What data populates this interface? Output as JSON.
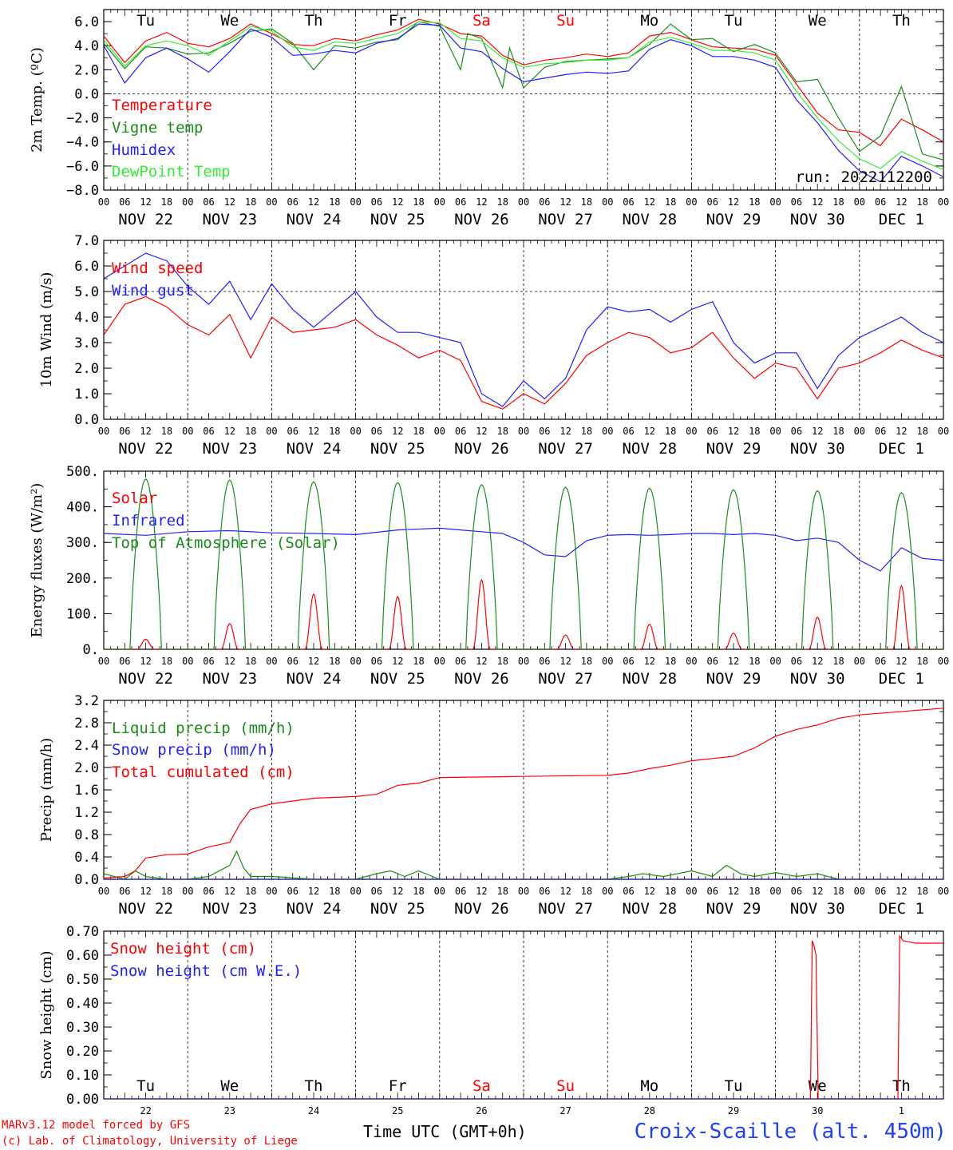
{
  "run_label": "run: 2022112200",
  "footer": {
    "model": "MARv3.12 model forced by GFS",
    "lab": "(c) Lab. of Climatology, University of Liege",
    "xlabel": "Time UTC (GMT+0h)",
    "station": "Croix-Scaille (alt. 450m)"
  },
  "colors": {
    "red": "#ff0000",
    "green": "#1a8c1a",
    "blue": "#1f1fff",
    "lightgreen": "#33ee33"
  },
  "hour_labels": [
    "00",
    "06",
    "12",
    "18"
  ],
  "date_labels": [
    "NOV 22",
    "NOV 23",
    "NOV 24",
    "NOV 25",
    "NOV 26",
    "NOV 27",
    "NOV 28",
    "NOV 29",
    "NOV 30",
    "DEC  1"
  ],
  "days": [
    {
      "name": "Tu",
      "weekend": false
    },
    {
      "name": "We",
      "weekend": false
    },
    {
      "name": "Th",
      "weekend": false
    },
    {
      "name": "Fr",
      "weekend": false
    },
    {
      "name": "Sa",
      "weekend": true
    },
    {
      "name": "Su",
      "weekend": true
    },
    {
      "name": "Mo",
      "weekend": false
    },
    {
      "name": "Tu",
      "weekend": false
    },
    {
      "name": "We",
      "weekend": false
    },
    {
      "name": "Th",
      "weekend": false
    }
  ],
  "day_numbers": [
    "22",
    "23",
    "24",
    "25",
    "26",
    "27",
    "28",
    "29",
    "30",
    "1"
  ],
  "chart_data": [
    {
      "type": "line",
      "ylabel": "2m Temp. (ºC)",
      "ylim": [
        -8,
        7
      ],
      "yticks": [
        "6.0",
        "4.0",
        "2.0",
        "0.0",
        "−2.0",
        "−4.0",
        "−6.0",
        "−8.0"
      ],
      "ytick_values": [
        6,
        4,
        2,
        0,
        -2,
        -4,
        -6,
        -8
      ],
      "zero_line": 0,
      "x_unit": "hours since NOV 22 00 UTC",
      "series": [
        {
          "name": "Temperature",
          "color": "#ff0000",
          "x": [
            0,
            6,
            12,
            18,
            24,
            30,
            36,
            42,
            48,
            54,
            60,
            66,
            72,
            78,
            84,
            90,
            96,
            102,
            108,
            114,
            120,
            126,
            132,
            138,
            144,
            150,
            156,
            162,
            168,
            174,
            180,
            186,
            192,
            198,
            204,
            210,
            216,
            222,
            228,
            234,
            240
          ],
          "values": [
            4.8,
            2.6,
            4.4,
            5.1,
            4.2,
            3.9,
            4.6,
            5.8,
            5.0,
            4.1,
            4.0,
            4.6,
            4.4,
            4.9,
            5.3,
            6.2,
            5.8,
            5.0,
            4.8,
            3.2,
            2.4,
            2.8,
            3.0,
            3.3,
            3.1,
            3.4,
            4.8,
            5.1,
            4.5,
            3.9,
            3.8,
            3.7,
            3.2,
            0.8,
            -1.6,
            -3.0,
            -3.2,
            -4.3,
            -2.1,
            -3.0,
            -4.0
          ]
        },
        {
          "name": "Vigne temp",
          "color": "#1a8c1a",
          "x": [
            0,
            6,
            12,
            18,
            24,
            30,
            36,
            42,
            48,
            54,
            60,
            66,
            72,
            78,
            84,
            90,
            96,
            102,
            104,
            108,
            114,
            116,
            120,
            126,
            132,
            138,
            144,
            150,
            156,
            162,
            168,
            174,
            180,
            186,
            192,
            198,
            204,
            210,
            216,
            222,
            228,
            234,
            240
          ],
          "values": [
            4.2,
            2.1,
            3.9,
            3.8,
            3.3,
            3.4,
            4.2,
            5.2,
            5.4,
            4.2,
            2.0,
            4.0,
            3.8,
            4.3,
            4.5,
            6.0,
            5.6,
            2.0,
            5.0,
            4.6,
            0.5,
            3.8,
            0.5,
            2.2,
            2.7,
            2.8,
            2.9,
            3.0,
            4.1,
            5.8,
            4.5,
            4.6,
            3.5,
            4.1,
            3.4,
            1.0,
            1.2,
            -2.0,
            -4.8,
            -3.5,
            0.6,
            -5.0,
            -5.5
          ]
        },
        {
          "name": "Humidex",
          "color": "#1f1fff",
          "x": [
            0,
            6,
            12,
            18,
            24,
            30,
            36,
            42,
            48,
            54,
            60,
            66,
            72,
            78,
            84,
            90,
            96,
            102,
            108,
            114,
            120,
            126,
            132,
            138,
            144,
            150,
            156,
            162,
            168,
            174,
            180,
            186,
            192,
            198,
            204,
            210,
            216,
            222,
            228,
            234,
            240
          ],
          "values": [
            4.0,
            0.9,
            3.0,
            3.8,
            2.9,
            1.8,
            3.5,
            5.4,
            4.7,
            3.2,
            3.3,
            3.6,
            3.4,
            4.2,
            4.6,
            5.8,
            5.7,
            3.8,
            3.5,
            2.1,
            1.0,
            1.3,
            1.6,
            1.8,
            1.7,
            1.9,
            3.7,
            4.5,
            4.0,
            3.1,
            3.1,
            2.8,
            2.2,
            -0.5,
            -2.4,
            -4.7,
            -6.4,
            -7.3,
            -5.2,
            -6.0,
            -6.9
          ]
        },
        {
          "name": "DewPoint Temp",
          "color": "#33ee33",
          "x": [
            0,
            6,
            12,
            18,
            24,
            30,
            36,
            42,
            48,
            54,
            60,
            66,
            72,
            78,
            84,
            90,
            96,
            102,
            108,
            114,
            120,
            126,
            132,
            138,
            144,
            150,
            156,
            162,
            168,
            174,
            180,
            186,
            192,
            198,
            204,
            210,
            216,
            222,
            228,
            234,
            240
          ],
          "values": [
            4.5,
            2.3,
            4.0,
            4.4,
            4.0,
            3.2,
            4.4,
            5.6,
            5.2,
            3.9,
            3.6,
            4.3,
            4.2,
            4.6,
            5.0,
            6.0,
            5.9,
            4.6,
            4.4,
            3.0,
            2.2,
            2.5,
            2.6,
            2.8,
            2.8,
            3.0,
            4.3,
            4.7,
            4.2,
            3.6,
            3.6,
            3.4,
            2.8,
            0.2,
            -2.0,
            -3.9,
            -5.4,
            -6.2,
            -4.8,
            -5.6,
            -6.3
          ]
        }
      ]
    },
    {
      "type": "line",
      "ylabel": "10m Wind (m/s)",
      "ylim": [
        0,
        7
      ],
      "yticks": [
        "7.0",
        "6.0",
        "5.0",
        "4.0",
        "3.0",
        "2.0",
        "1.0",
        "0.0"
      ],
      "ytick_values": [
        7,
        6,
        5,
        4,
        3,
        2,
        1,
        0
      ],
      "dashed_line": 5,
      "x_unit": "hours since NOV 22 00 UTC",
      "series": [
        {
          "name": "Wind speed",
          "color": "#ff0000",
          "x": [
            0,
            6,
            12,
            18,
            24,
            30,
            36,
            42,
            48,
            54,
            60,
            66,
            72,
            78,
            84,
            90,
            96,
            102,
            108,
            114,
            120,
            126,
            132,
            138,
            144,
            150,
            156,
            162,
            168,
            174,
            180,
            186,
            192,
            198,
            204,
            210,
            216,
            222,
            228,
            234,
            240
          ],
          "values": [
            3.3,
            4.5,
            4.8,
            4.4,
            3.7,
            3.3,
            4.1,
            2.4,
            4.0,
            3.4,
            3.5,
            3.6,
            3.9,
            3.3,
            2.9,
            2.4,
            2.7,
            2.3,
            0.7,
            0.4,
            1.0,
            0.6,
            1.4,
            2.5,
            3.0,
            3.4,
            3.2,
            2.6,
            2.8,
            3.4,
            2.4,
            1.6,
            2.2,
            2.0,
            0.8,
            2.0,
            2.2,
            2.6,
            3.1,
            2.7,
            2.4
          ]
        },
        {
          "name": "Wind gust",
          "color": "#1f1fff",
          "x": [
            0,
            6,
            12,
            18,
            24,
            30,
            36,
            42,
            48,
            54,
            60,
            66,
            72,
            78,
            84,
            90,
            96,
            102,
            108,
            114,
            120,
            126,
            132,
            138,
            144,
            150,
            156,
            162,
            168,
            174,
            180,
            186,
            192,
            198,
            204,
            210,
            216,
            222,
            228,
            234,
            240
          ],
          "values": [
            5.5,
            6.0,
            6.5,
            6.2,
            5.2,
            4.5,
            5.4,
            3.9,
            5.3,
            4.3,
            3.6,
            4.3,
            5.0,
            4.0,
            3.4,
            3.4,
            3.2,
            3.0,
            1.0,
            0.5,
            1.5,
            0.8,
            1.6,
            3.5,
            4.4,
            4.2,
            4.3,
            3.8,
            4.3,
            4.6,
            3.0,
            2.2,
            2.6,
            2.6,
            1.2,
            2.5,
            3.2,
            3.6,
            4.0,
            3.4,
            3.0
          ]
        }
      ]
    },
    {
      "type": "line",
      "ylabel": "Energy fluxes (W/m²)",
      "ylim": [
        0,
        500
      ],
      "yticks": [
        "500.",
        "400.",
        "300.",
        "200.",
        "100.",
        "0."
      ],
      "ytick_values": [
        500,
        400,
        300,
        200,
        100,
        0
      ],
      "x_unit": "hours since NOV 22 00 UTC",
      "series": [
        {
          "name": "Solar",
          "color": "#ff0000",
          "peaks": [
            28,
            72,
            155,
            148,
            195,
            40,
            70,
            45,
            90,
            178
          ]
        },
        {
          "name": "Infrared",
          "color": "#1f1fff",
          "x": [
            0,
            12,
            24,
            36,
            48,
            60,
            72,
            84,
            96,
            102,
            108,
            114,
            120,
            126,
            132,
            138,
            144,
            150,
            156,
            162,
            168,
            174,
            180,
            186,
            192,
            198,
            204,
            210,
            216,
            222,
            228,
            234,
            240
          ],
          "values": [
            325,
            320,
            330,
            333,
            327,
            325,
            322,
            335,
            340,
            335,
            330,
            325,
            300,
            265,
            260,
            305,
            320,
            322,
            320,
            322,
            325,
            325,
            322,
            325,
            320,
            305,
            312,
            300,
            250,
            220,
            285,
            255,
            250
          ]
        },
        {
          "name": "Top of Atmosphere (Solar)",
          "color": "#1a8c1a",
          "peaks": [
            478,
            475,
            470,
            468,
            462,
            455,
            452,
            448,
            445,
            440
          ]
        }
      ],
      "daylight_hours": [
        8,
        16
      ]
    },
    {
      "type": "line",
      "ylabel": "Precip (mm/h)",
      "ylim": [
        0,
        3.2
      ],
      "yticks": [
        "3.2",
        "2.8",
        "2.4",
        "2.0",
        "1.6",
        "1.2",
        "0.8",
        "0.4",
        "0.0"
      ],
      "ytick_values": [
        3.2,
        2.8,
        2.4,
        2.0,
        1.6,
        1.2,
        0.8,
        0.4,
        0.0
      ],
      "x_unit": "hours since NOV 22 00 UTC",
      "series": [
        {
          "name": "Liquid precip (mm/h)",
          "color": "#1a8c1a",
          "x": [
            0,
            6,
            9,
            12,
            18,
            24,
            30,
            36,
            38,
            40,
            42,
            48,
            60,
            72,
            78,
            82,
            86,
            90,
            96,
            120,
            144,
            150,
            154,
            160,
            168,
            174,
            178,
            182,
            186,
            192,
            198,
            204,
            210,
            216,
            240
          ],
          "values": [
            0.1,
            0.0,
            0.15,
            0.05,
            0.0,
            0.0,
            0.05,
            0.25,
            0.5,
            0.2,
            0.05,
            0.05,
            0.0,
            0.0,
            0.1,
            0.15,
            0.05,
            0.15,
            0.0,
            0.0,
            0.0,
            0.05,
            0.1,
            0.05,
            0.15,
            0.05,
            0.25,
            0.1,
            0.05,
            0.12,
            0.05,
            0.1,
            0.0,
            0.0,
            0.0
          ]
        },
        {
          "name": "Snow precip (mm/h)",
          "color": "#1f1fff",
          "x": [
            0,
            240
          ],
          "values": [
            0,
            0
          ]
        },
        {
          "name": "Total cumulated (cm)",
          "color": "#ff0000",
          "x": [
            0,
            6,
            9,
            12,
            18,
            24,
            30,
            36,
            39,
            42,
            48,
            60,
            72,
            78,
            84,
            90,
            96,
            120,
            144,
            150,
            156,
            162,
            168,
            174,
            180,
            186,
            192,
            198,
            204,
            210,
            216,
            240
          ],
          "values": [
            0.02,
            0.05,
            0.15,
            0.38,
            0.44,
            0.45,
            0.58,
            0.66,
            1.0,
            1.25,
            1.35,
            1.45,
            1.48,
            1.52,
            1.68,
            1.72,
            1.82,
            1.84,
            1.86,
            1.9,
            1.98,
            2.04,
            2.12,
            2.16,
            2.2,
            2.35,
            2.56,
            2.68,
            2.76,
            2.88,
            2.94,
            3.06
          ]
        }
      ]
    },
    {
      "type": "line",
      "ylabel": "Snow height (cm)",
      "ylim": [
        0,
        0.7
      ],
      "yticks": [
        "0.70",
        "0.60",
        "0.50",
        "0.40",
        "0.30",
        "0.20",
        "0.10",
        "0.00"
      ],
      "ytick_values": [
        0.7,
        0.6,
        0.5,
        0.4,
        0.3,
        0.2,
        0.1,
        0.0
      ],
      "x_unit": "hours since NOV 22 00 UTC",
      "series": [
        {
          "name": "Snow height (cm)",
          "color": "#ff0000",
          "x": [
            0,
            202,
            202.5,
            203,
            203.6,
            204.2,
            227,
            227.5,
            228.5,
            232,
            240
          ],
          "values": [
            0,
            0,
            0.66,
            0.64,
            0.6,
            0,
            0,
            0.68,
            0.66,
            0.65,
            0.65
          ]
        },
        {
          "name": "Snow height (cm W.E.)",
          "color": "#1f1fff",
          "x": [
            0,
            240
          ],
          "values": [
            0,
            0
          ]
        }
      ]
    }
  ],
  "legends": [
    [
      "Temperature",
      "Vigne temp",
      "Humidex",
      "DewPoint Temp"
    ],
    [
      "Wind speed",
      "Wind gust"
    ],
    [
      "Solar",
      "Infrared",
      "Top of Atmosphere (Solar)"
    ],
    [
      "Liquid precip (mm/h)",
      "Snow precip (mm/h)",
      "Total cumulated (cm)"
    ],
    [
      "Snow height (cm)",
      "Snow height (cm W.E.)"
    ]
  ]
}
